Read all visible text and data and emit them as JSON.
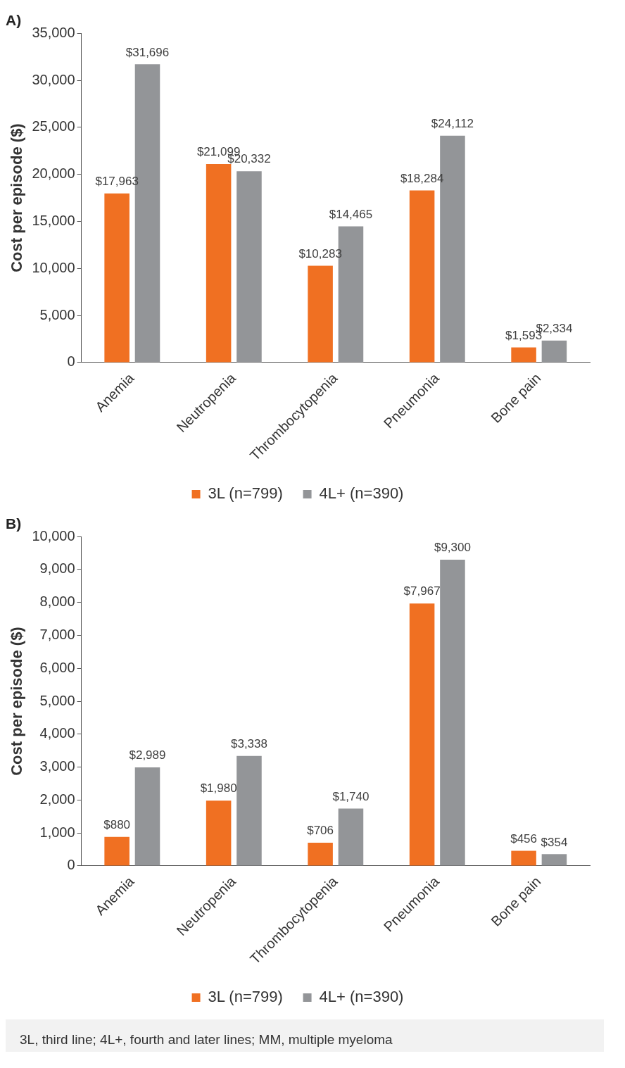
{
  "chart_data": [
    {
      "type": "bar",
      "title": "A)",
      "ylabel": "Cost per episode ($)",
      "categories": [
        "Anemia",
        "Neutropenia",
        "Thrombocytopenia",
        "Pneumonia",
        "Bone pain"
      ],
      "series": [
        {
          "name": "3L (n=799)",
          "color": "#f07022",
          "values": [
            17963,
            21099,
            10283,
            18284,
            1593
          ],
          "value_labels": [
            "$17,963",
            "$21,099",
            "$10,283",
            "$18,284",
            "$1,593"
          ]
        },
        {
          "name": "4L+ (n=390)",
          "color": "#939598",
          "values": [
            31696,
            20332,
            14465,
            24112,
            2334
          ],
          "value_labels": [
            "$31,696",
            "$20,332",
            "$14,465",
            "$24,112",
            "$2,334"
          ]
        }
      ],
      "ylim": [
        0,
        35000
      ],
      "yticks": [
        0,
        {
          "value": 5000,
          "label": "5,000"
        },
        {
          "value": 10000,
          "label": "10,000"
        },
        {
          "value": 15000,
          "label": "15,000"
        },
        {
          "value": 20000,
          "label": "20,000"
        },
        {
          "value": 25000,
          "label": "25,000"
        },
        {
          "value": 30000,
          "label": "30,000"
        },
        {
          "value": 35000,
          "label": "35,000"
        }
      ],
      "grid": false,
      "legend": "bottom"
    },
    {
      "type": "bar",
      "title": "B)",
      "ylabel": "Cost per episode ($)",
      "categories": [
        "Anemia",
        "Neutropenia",
        "Thrombocytopenia",
        "Pneumonia",
        "Bone pain"
      ],
      "series": [
        {
          "name": "3L (n=799)",
          "color": "#f07022",
          "values": [
            880,
            1980,
            706,
            7967,
            456
          ],
          "value_labels": [
            "$880",
            "$1,980",
            "$706",
            "$7,967",
            "$456"
          ]
        },
        {
          "name": "4L+ (n=390)",
          "color": "#939598",
          "values": [
            2989,
            3338,
            1740,
            9300,
            354
          ],
          "value_labels": [
            "$2,989",
            "$3,338",
            "$1,740",
            "$9,300",
            "$354"
          ]
        }
      ],
      "ylim": [
        0,
        10000
      ],
      "yticks": [
        0,
        {
          "value": 1000,
          "label": "1,000"
        },
        {
          "value": 2000,
          "label": "2,000"
        },
        {
          "value": 3000,
          "label": "3,000"
        },
        {
          "value": 4000,
          "label": "4,000"
        },
        {
          "value": 5000,
          "label": "5,000"
        },
        {
          "value": 6000,
          "label": "6,000"
        },
        {
          "value": 7000,
          "label": "7,000"
        },
        {
          "value": 8000,
          "label": "8,000"
        },
        {
          "value": 9000,
          "label": "9,000"
        },
        {
          "value": 10000,
          "label": "10,000"
        }
      ],
      "grid": false,
      "legend": "bottom",
      "annotations": [
        "3L, third line; 4L+, fourth and later lines; MM, multiple myeloma"
      ]
    }
  ]
}
